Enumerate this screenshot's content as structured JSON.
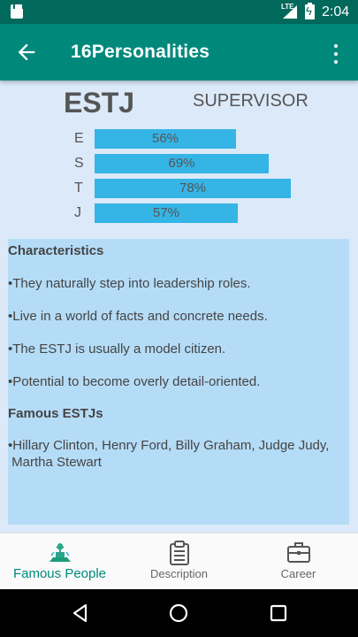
{
  "status_bar": {
    "network": "LTE",
    "time": "2:04"
  },
  "app_bar": {
    "title": "16Personalities"
  },
  "header": {
    "type_code": "ESTJ",
    "type_name": "SUPERVISOR"
  },
  "scores": [
    {
      "letter": "E",
      "label": "56%",
      "value": 0.56
    },
    {
      "letter": "S",
      "label": "69%",
      "value": 0.69
    },
    {
      "letter": "T",
      "label": "78%",
      "value": 0.78
    },
    {
      "letter": "J",
      "label": "57%",
      "value": 0.57
    }
  ],
  "panel": {
    "characteristics_heading": "Characteristics",
    "characteristics": [
      "•They naturally step into leadership roles.",
      "•Live in a world of facts and concrete needs.",
      "•The ESTJ is usually a model citizen.",
      "•Potential to become overly detail-oriented."
    ],
    "famous_heading": "Famous ESTJs",
    "famous_line1": "•Hillary Clinton, Henry Ford, Billy Graham, Judge Judy,",
    "famous_line2": " Martha Stewart"
  },
  "bottom_nav": {
    "items": [
      {
        "label": "Famous People",
        "icon": "famous-people-icon",
        "active": true
      },
      {
        "label": "Description",
        "icon": "clipboard-icon",
        "active": false
      },
      {
        "label": "Career",
        "icon": "briefcase-icon",
        "active": false
      }
    ]
  },
  "colors": {
    "status_bar": "#00695c",
    "app_bar": "#00897b",
    "page_background": "#dbe9f8",
    "score_bar": "#35b4e6",
    "panel": "#b5dcf7"
  }
}
